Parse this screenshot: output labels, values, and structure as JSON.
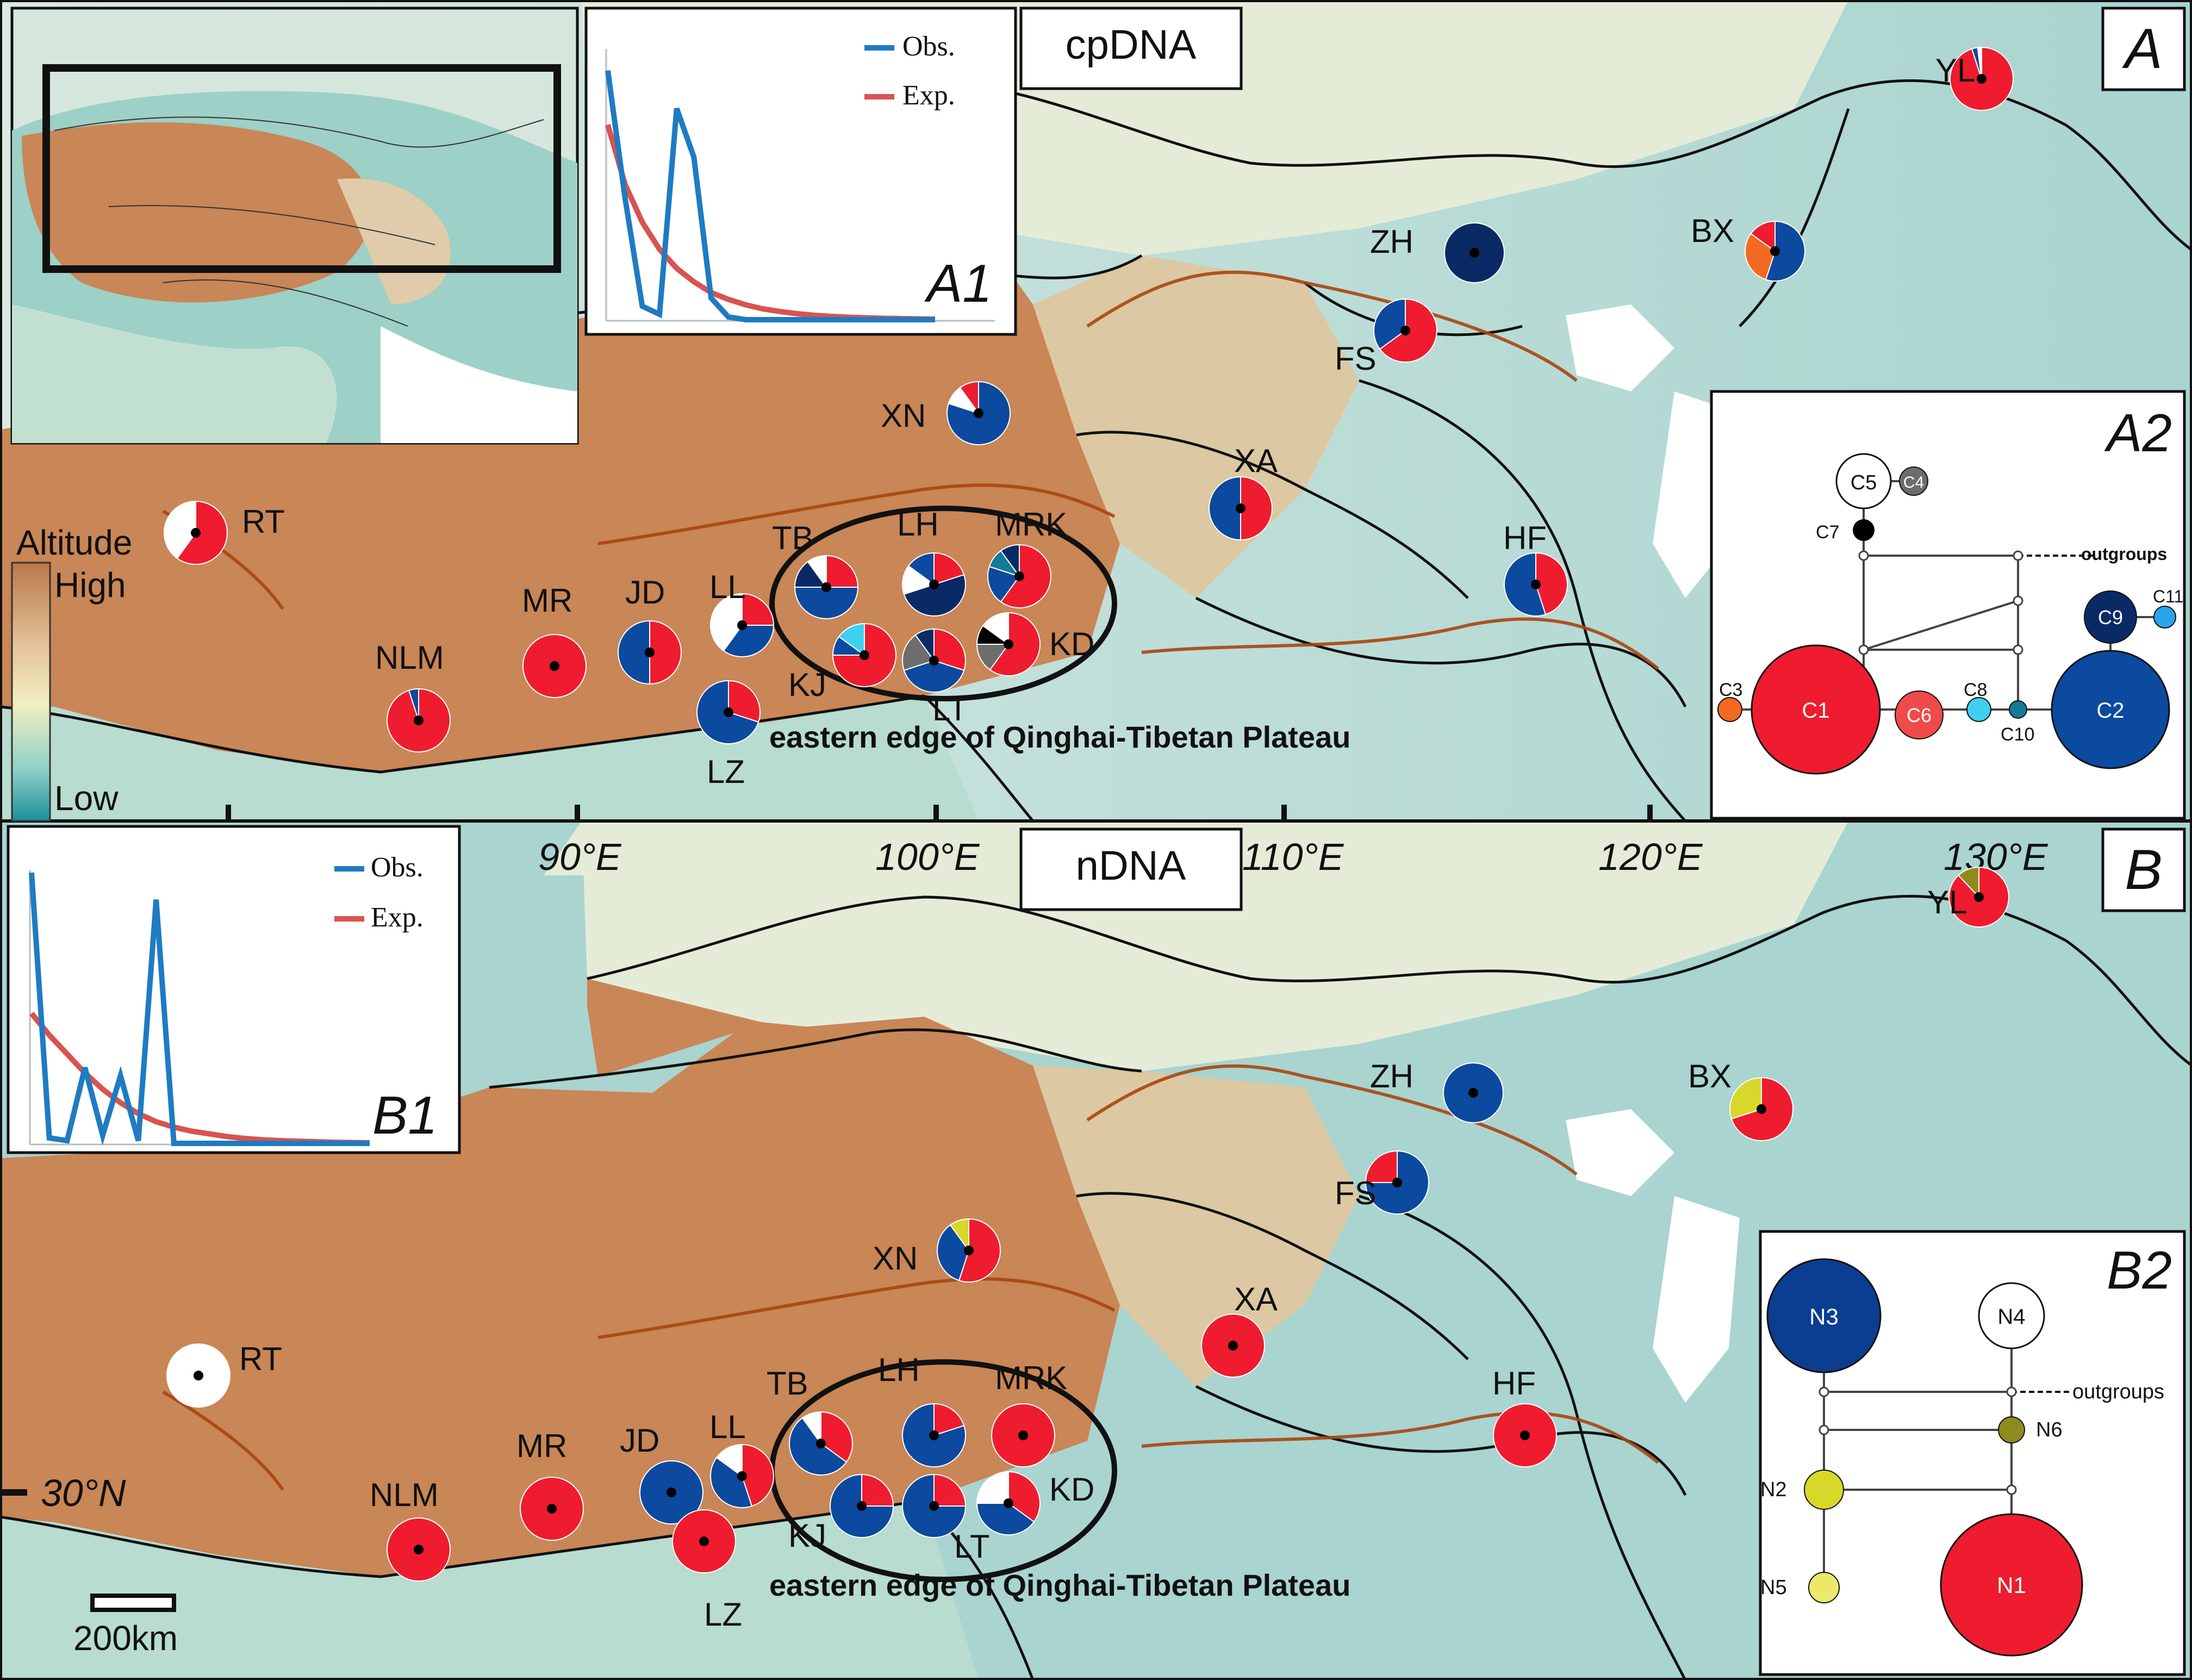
{
  "panels": {
    "A": {
      "letter": "A",
      "marker": "cpDNA",
      "inset_altitude": {
        "title": "Altitude",
        "high": "High",
        "low": "Low"
      },
      "mismatch": {
        "letter": "A1",
        "legend": [
          "Obs.",
          "Exp."
        ],
        "obs": [
          0.92,
          0.45,
          0.05,
          0.02,
          0.78,
          0.6,
          0.08,
          0.01,
          0,
          0,
          0,
          0,
          0,
          0,
          0,
          0,
          0,
          0,
          0,
          0
        ],
        "exp": [
          0.72,
          0.5,
          0.36,
          0.26,
          0.19,
          0.14,
          0.1,
          0.075,
          0.055,
          0.04,
          0.03,
          0.022,
          0.016,
          0.012,
          0.009,
          0.007,
          0.005,
          0.004,
          0.003,
          0.002
        ]
      },
      "network": {
        "letter": "A2",
        "outgroups": "outgroups",
        "nodes": [
          {
            "id": "C1",
            "color": "#ee1c2e"
          },
          {
            "id": "C2",
            "color": "#0b4a9f"
          },
          {
            "id": "C3",
            "color": "#f26a21"
          },
          {
            "id": "C4",
            "color": "#6d6d6d"
          },
          {
            "id": "C5",
            "color": "#ffffff"
          },
          {
            "id": "C6",
            "color": "#f04a4a"
          },
          {
            "id": "C7",
            "color": "#000000"
          },
          {
            "id": "C8",
            "color": "#3fd0f0"
          },
          {
            "id": "C9",
            "color": "#0a2a66"
          },
          {
            "id": "C10",
            "color": "#147a9a"
          },
          {
            "id": "C11",
            "color": "#2ba5ea"
          }
        ]
      },
      "region_label": "eastern edge of Qinghai-Tibetan Plateau",
      "populations": [
        {
          "id": "YL",
          "slices": [
            {
              "c": "#ee1c2e",
              "v": 0.95
            },
            {
              "c": "#0b4a9f",
              "v": 0.03
            },
            {
              "c": "#ffffff",
              "v": 0.02
            }
          ]
        },
        {
          "id": "ZH",
          "slices": [
            {
              "c": "#0a2a66",
              "v": 1
            }
          ]
        },
        {
          "id": "BX",
          "slices": [
            {
              "c": "#0b4a9f",
              "v": 0.55
            },
            {
              "c": "#f26a21",
              "v": 0.3
            },
            {
              "c": "#ee1c2e",
              "v": 0.15
            }
          ]
        },
        {
          "id": "FS",
          "slices": [
            {
              "c": "#ee1c2e",
              "v": 0.65
            },
            {
              "c": "#0b4a9f",
              "v": 0.35
            }
          ]
        },
        {
          "id": "XN",
          "slices": [
            {
              "c": "#0b4a9f",
              "v": 0.8
            },
            {
              "c": "#ffffff",
              "v": 0.1
            },
            {
              "c": "#ee1c2e",
              "v": 0.1
            }
          ]
        },
        {
          "id": "XA",
          "slices": [
            {
              "c": "#ee1c2e",
              "v": 0.5
            },
            {
              "c": "#0b4a9f",
              "v": 0.5
            }
          ]
        },
        {
          "id": "HF",
          "slices": [
            {
              "c": "#ee1c2e",
              "v": 0.45
            },
            {
              "c": "#0b4a9f",
              "v": 0.55
            }
          ]
        },
        {
          "id": "RT",
          "slices": [
            {
              "c": "#ee1c2e",
              "v": 0.6
            },
            {
              "c": "#ffffff",
              "v": 0.4
            }
          ]
        },
        {
          "id": "MR",
          "slices": [
            {
              "c": "#ee1c2e",
              "v": 1
            }
          ]
        },
        {
          "id": "NLM",
          "slices": [
            {
              "c": "#ee1c2e",
              "v": 0.95
            },
            {
              "c": "#0b4a9f",
              "v": 0.05
            }
          ]
        },
        {
          "id": "JD",
          "slices": [
            {
              "c": "#ee1c2e",
              "v": 0.5
            },
            {
              "c": "#0b4a9f",
              "v": 0.5
            }
          ]
        },
        {
          "id": "LL",
          "slices": [
            {
              "c": "#ee1c2e",
              "v": 0.25
            },
            {
              "c": "#0b4a9f",
              "v": 0.35
            },
            {
              "c": "#ffffff",
              "v": 0.4
            }
          ]
        },
        {
          "id": "LZ",
          "slices": [
            {
              "c": "#ee1c2e",
              "v": 0.3
            },
            {
              "c": "#0b4a9f",
              "v": 0.7
            }
          ]
        },
        {
          "id": "TB",
          "slices": [
            {
              "c": "#ee1c2e",
              "v": 0.25
            },
            {
              "c": "#0b4a9f",
              "v": 0.5
            },
            {
              "c": "#0a2a66",
              "v": 0.15
            },
            {
              "c": "#ffffff",
              "v": 0.1
            }
          ]
        },
        {
          "id": "LH",
          "slices": [
            {
              "c": "#ee1c2e",
              "v": 0.2
            },
            {
              "c": "#0a2a66",
              "v": 0.5
            },
            {
              "c": "#ffffff",
              "v": 0.15
            },
            {
              "c": "#0b4a9f",
              "v": 0.15
            }
          ]
        },
        {
          "id": "MRK",
          "slices": [
            {
              "c": "#ee1c2e",
              "v": 0.6
            },
            {
              "c": "#0b4a9f",
              "v": 0.2
            },
            {
              "c": "#147a9a",
              "v": 0.1
            },
            {
              "c": "#0a2a66",
              "v": 0.1
            }
          ]
        },
        {
          "id": "KJ",
          "slices": [
            {
              "c": "#ee1c2e",
              "v": 0.75
            },
            {
              "c": "#0b4a9f",
              "v": 0.1
            },
            {
              "c": "#3fd0f0",
              "v": 0.15
            }
          ]
        },
        {
          "id": "LT",
          "slices": [
            {
              "c": "#ee1c2e",
              "v": 0.3
            },
            {
              "c": "#0b4a9f",
              "v": 0.4
            },
            {
              "c": "#6d6d6d",
              "v": 0.2
            },
            {
              "c": "#0a2a66",
              "v": 0.1
            }
          ]
        },
        {
          "id": "KD",
          "slices": [
            {
              "c": "#ee1c2e",
              "v": 0.6
            },
            {
              "c": "#6d6d6d",
              "v": 0.15
            },
            {
              "c": "#000000",
              "v": 0.1
            },
            {
              "c": "#ffffff",
              "v": 0.15
            }
          ]
        }
      ]
    },
    "B": {
      "letter": "B",
      "marker": "nDNA",
      "mismatch": {
        "letter": "B1",
        "legend": [
          "Obs.",
          "Exp."
        ],
        "obs": [
          1.0,
          0.02,
          0.01,
          0.28,
          0.03,
          0.25,
          0.01,
          0.9,
          0,
          0,
          0,
          0,
          0,
          0,
          0,
          0,
          0,
          0,
          0,
          0
        ],
        "exp": [
          0.48,
          0.4,
          0.33,
          0.26,
          0.2,
          0.15,
          0.11,
          0.08,
          0.06,
          0.045,
          0.035,
          0.025,
          0.018,
          0.013,
          0.01,
          0.008,
          0.006,
          0.004,
          0.003,
          0.002
        ]
      },
      "network": {
        "letter": "B2",
        "outgroups": "outgroups",
        "nodes": [
          {
            "id": "N1",
            "color": "#ee1c2e"
          },
          {
            "id": "N2",
            "color": "#d8d82a"
          },
          {
            "id": "N3",
            "color": "#0b3d91"
          },
          {
            "id": "N4",
            "color": "#ffffff"
          },
          {
            "id": "N5",
            "color": "#ece86a"
          },
          {
            "id": "N6",
            "color": "#8f8a1e"
          }
        ]
      },
      "region_label": "eastern edge of Qinghai-Tibetan Plateau",
      "scalebar": "200km",
      "populations": [
        {
          "id": "YL",
          "slices": [
            {
              "c": "#ee1c2e",
              "v": 0.88
            },
            {
              "c": "#8f8a1e",
              "v": 0.12
            }
          ]
        },
        {
          "id": "ZH",
          "slices": [
            {
              "c": "#0b4a9f",
              "v": 1
            }
          ]
        },
        {
          "id": "BX",
          "slices": [
            {
              "c": "#ee1c2e",
              "v": 0.7
            },
            {
              "c": "#d8d82a",
              "v": 0.3
            }
          ]
        },
        {
          "id": "FS",
          "slices": [
            {
              "c": "#0b4a9f",
              "v": 0.75
            },
            {
              "c": "#ee1c2e",
              "v": 0.25
            }
          ]
        },
        {
          "id": "XN",
          "slices": [
            {
              "c": "#ee1c2e",
              "v": 0.55
            },
            {
              "c": "#0b4a9f",
              "v": 0.35
            },
            {
              "c": "#d8d82a",
              "v": 0.1
            }
          ]
        },
        {
          "id": "XA",
          "slices": [
            {
              "c": "#ee1c2e",
              "v": 1
            }
          ]
        },
        {
          "id": "HF",
          "slices": [
            {
              "c": "#ee1c2e",
              "v": 1
            }
          ]
        },
        {
          "id": "RT",
          "slices": [
            {
              "c": "#ffffff",
              "v": 1
            }
          ]
        },
        {
          "id": "MR",
          "slices": [
            {
              "c": "#ee1c2e",
              "v": 1
            }
          ]
        },
        {
          "id": "NLM",
          "slices": [
            {
              "c": "#ee1c2e",
              "v": 1
            }
          ]
        },
        {
          "id": "JD",
          "slices": [
            {
              "c": "#0b4a9f",
              "v": 1
            }
          ]
        },
        {
          "id": "LL",
          "slices": [
            {
              "c": "#ee1c2e",
              "v": 0.45
            },
            {
              "c": "#0b4a9f",
              "v": 0.4
            },
            {
              "c": "#ffffff",
              "v": 0.15
            }
          ]
        },
        {
          "id": "LZ",
          "slices": [
            {
              "c": "#ee1c2e",
              "v": 1
            }
          ]
        },
        {
          "id": "TB",
          "slices": [
            {
              "c": "#ee1c2e",
              "v": 0.35
            },
            {
              "c": "#0b4a9f",
              "v": 0.55
            },
            {
              "c": "#ffffff",
              "v": 0.1
            }
          ]
        },
        {
          "id": "LH",
          "slices": [
            {
              "c": "#ee1c2e",
              "v": 0.2
            },
            {
              "c": "#0b4a9f",
              "v": 0.8
            }
          ]
        },
        {
          "id": "MRK",
          "slices": [
            {
              "c": "#ee1c2e",
              "v": 1
            }
          ]
        },
        {
          "id": "KJ",
          "slices": [
            {
              "c": "#ee1c2e",
              "v": 0.25
            },
            {
              "c": "#0b4a9f",
              "v": 0.75
            }
          ]
        },
        {
          "id": "LT",
          "slices": [
            {
              "c": "#ee1c2e",
              "v": 0.25
            },
            {
              "c": "#0b4a9f",
              "v": 0.75
            }
          ]
        },
        {
          "id": "KD",
          "slices": [
            {
              "c": "#ee1c2e",
              "v": 0.35
            },
            {
              "c": "#0b4a9f",
              "v": 0.4
            },
            {
              "c": "#ffffff",
              "v": 0.25
            }
          ]
        }
      ]
    }
  },
  "axes": {
    "longitudes": [
      "90°E",
      "100°E",
      "110°E",
      "120°E",
      "130°E"
    ],
    "latitude": "30°N"
  }
}
